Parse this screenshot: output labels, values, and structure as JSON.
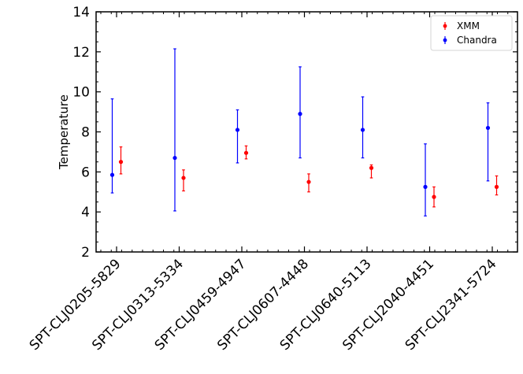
{
  "chart_data": {
    "type": "scatter",
    "title": "",
    "xlabel": "",
    "ylabel": "Temperature",
    "ylim": [
      2,
      14
    ],
    "yticks": [
      2,
      4,
      6,
      8,
      10,
      12,
      14
    ],
    "grid": false,
    "legend_position": "top-right",
    "categories": [
      "SPT-CLJ0205-5829",
      "SPT-CLJ0313-5334",
      "SPT-CLJ0459-4947",
      "SPT-CLJ0607-4448",
      "SPT-CLJ0640-5113",
      "SPT-CLJ2040-4451",
      "SPT-CLJ2341-5724"
    ],
    "series": [
      {
        "name": "XMM",
        "color": "#ff0000",
        "values": [
          6.5,
          5.7,
          6.95,
          5.5,
          6.2,
          4.75,
          5.25
        ],
        "err_low": [
          5.9,
          5.05,
          6.65,
          5.0,
          5.7,
          4.25,
          4.85
        ],
        "err_high": [
          7.25,
          6.1,
          7.3,
          5.9,
          6.35,
          5.25,
          5.8
        ]
      },
      {
        "name": "Chandra",
        "color": "#0000ff",
        "values": [
          5.85,
          6.7,
          8.1,
          8.9,
          8.1,
          5.25,
          8.2
        ],
        "err_low": [
          4.95,
          4.05,
          6.45,
          6.7,
          6.7,
          3.8,
          5.55
        ],
        "err_high": [
          9.65,
          12.15,
          9.1,
          11.25,
          9.75,
          7.4,
          9.45
        ]
      }
    ]
  }
}
